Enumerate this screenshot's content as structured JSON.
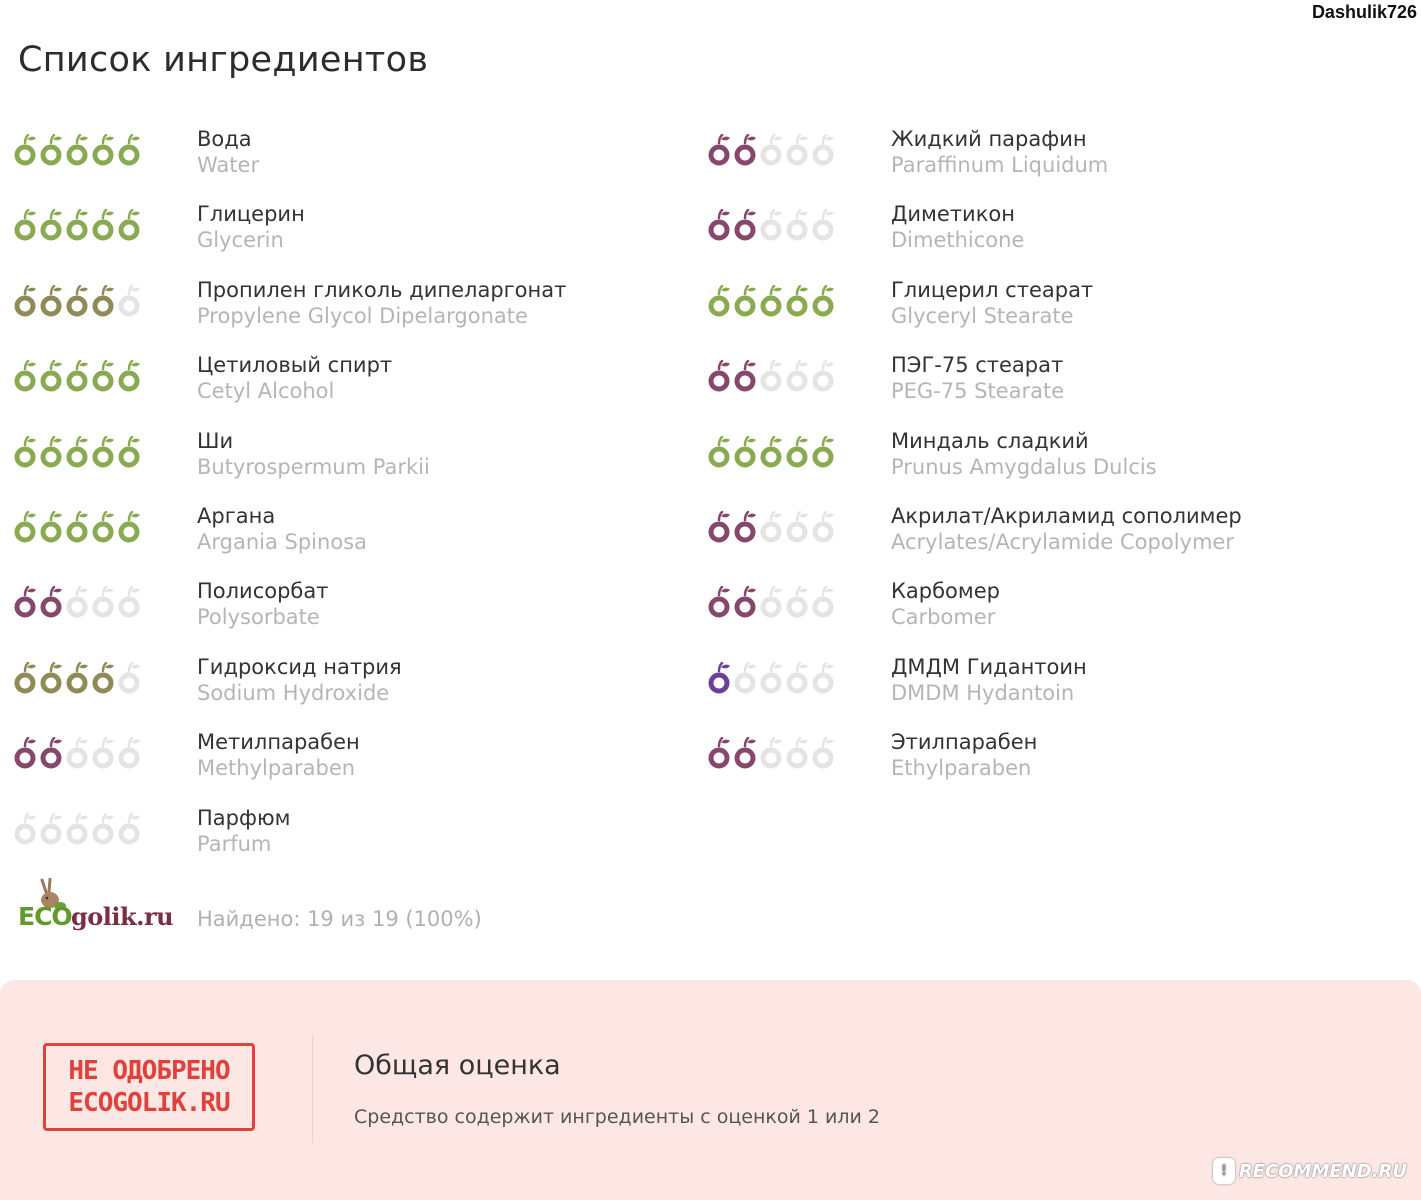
{
  "header": {
    "username": "Dashulik726",
    "title": "Список ингредиентов"
  },
  "colors": {
    "green": "#8aaa52",
    "olive": "#8f8a58",
    "plum": "#87466b",
    "violet": "#6b3f9a",
    "empty": "#e4e4e4"
  },
  "ingredients_left": [
    {
      "ru": "Вода",
      "lat": "Water",
      "rating": 5,
      "color": "#8aaa52"
    },
    {
      "ru": "Глицерин",
      "lat": "Glycerin",
      "rating": 5,
      "color": "#8aaa52"
    },
    {
      "ru": "Пропилен гликоль дипеларгонат",
      "lat": "Propylene Glycol Dipelargonate",
      "rating": 4,
      "color": "#8f8a58"
    },
    {
      "ru": "Цетиловый спирт",
      "lat": "Cetyl Alcohol",
      "rating": 5,
      "color": "#8aaa52"
    },
    {
      "ru": "Ши",
      "lat": "Butyrospermum Parkii",
      "rating": 5,
      "color": "#8aaa52"
    },
    {
      "ru": "Аргана",
      "lat": "Argania Spinosa",
      "rating": 5,
      "color": "#8aaa52"
    },
    {
      "ru": "Полисорбат",
      "lat": "Polysorbate",
      "rating": 2,
      "color": "#87466b"
    },
    {
      "ru": "Гидроксид натрия",
      "lat": "Sodium Hydroxide",
      "rating": 4,
      "color": "#8f8a58"
    },
    {
      "ru": "Метилпарабен",
      "lat": "Methylparaben",
      "rating": 2,
      "color": "#87466b"
    },
    {
      "ru": "Парфюм",
      "lat": "Parfum",
      "rating": 0,
      "color": "#e4e4e4"
    }
  ],
  "ingredients_right": [
    {
      "ru": "Жидкий парафин",
      "lat": "Paraffinum Liquidum",
      "rating": 2,
      "color": "#87466b"
    },
    {
      "ru": "Диметикон",
      "lat": "Dimethicone",
      "rating": 2,
      "color": "#87466b"
    },
    {
      "ru": "Глицерил стеарат",
      "lat": "Glyceryl Stearate",
      "rating": 5,
      "color": "#8aaa52"
    },
    {
      "ru": "ПЭГ-75 стеарат",
      "lat": "PEG-75 Stearate",
      "rating": 2,
      "color": "#87466b"
    },
    {
      "ru": "Миндаль сладкий",
      "lat": "Prunus Amygdalus Dulcis",
      "rating": 5,
      "color": "#8aaa52"
    },
    {
      "ru": "Акрилат/Акриламид сополимер",
      "lat": "Acrylates/Acrylamide Copolymer",
      "rating": 2,
      "color": "#87466b"
    },
    {
      "ru": "Карбомер",
      "lat": "Carbomer",
      "rating": 2,
      "color": "#87466b"
    },
    {
      "ru": "ДМДМ Гидантоин",
      "lat": "DMDM Hydantoin",
      "rating": 1,
      "color": "#6b3f9a"
    },
    {
      "ru": "Этилпарабен",
      "lat": "Ethylparaben",
      "rating": 2,
      "color": "#87466b"
    }
  ],
  "footer": {
    "logo_eco": "ECO",
    "logo_golik": "golik.ru",
    "found_text": "Найдено: 19 из 19 (100%)"
  },
  "verdict": {
    "stamp_line1": "НЕ ОДОБРЕНО",
    "stamp_line2": "ECOGOLIK.RU",
    "title": "Общая оценка",
    "description": "Средство содержит ингредиенты с оценкой 1 или 2"
  },
  "watermark": {
    "text": "RECOMMEND.RU"
  }
}
